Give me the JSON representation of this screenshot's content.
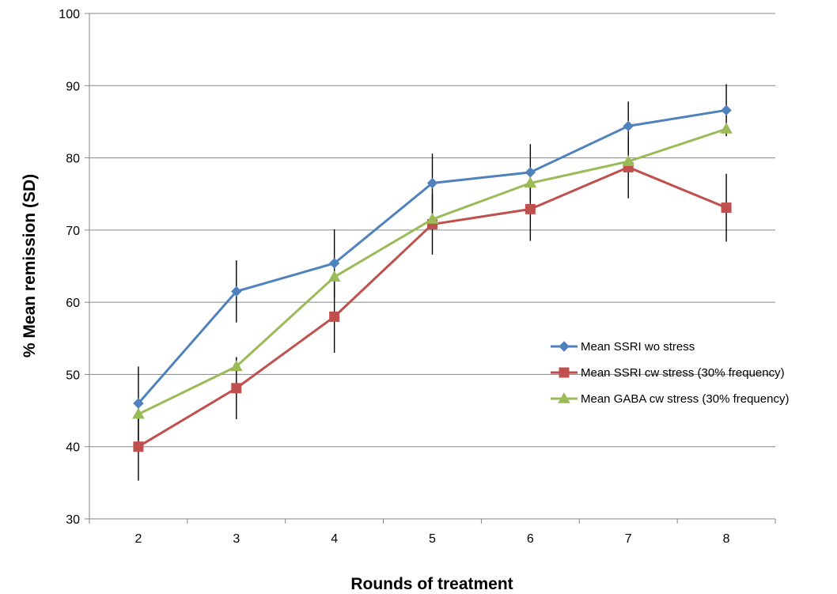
{
  "chart_data": {
    "type": "line",
    "title": "",
    "xlabel": "Rounds of treatment",
    "ylabel": "% Mean remission (SD)",
    "x": [
      2,
      3,
      4,
      5,
      6,
      7,
      8
    ],
    "ylim": [
      30,
      100
    ],
    "yticks": [
      30,
      40,
      50,
      60,
      70,
      80,
      90,
      100
    ],
    "grid": "horizontal",
    "legend_position": "right",
    "series": [
      {
        "name": "Mean SSRI wo stress",
        "color": "#4F81BD",
        "marker": "diamond",
        "values": [
          46.0,
          61.5,
          65.4,
          76.5,
          78.0,
          84.4,
          86.6
        ],
        "sd": [
          5.1,
          4.3,
          4.7,
          4.1,
          3.9,
          3.4,
          3.6
        ]
      },
      {
        "name": "Mean SSRI cw stress (30% frequency)",
        "color": "#C0504D",
        "marker": "square",
        "values": [
          40.0,
          48.1,
          58.0,
          70.8,
          72.9,
          78.7,
          73.1
        ],
        "sd": [
          4.7,
          4.3,
          5.0,
          4.2,
          4.4,
          4.3,
          4.7
        ]
      },
      {
        "name": "Mean GABA cw stress (30% frequency)",
        "color": "#9BBB59",
        "marker": "triangle",
        "values": [
          44.5,
          51.1,
          63.5,
          71.5,
          76.5,
          79.5,
          84.0
        ],
        "sd": [
          null,
          1.3,
          null,
          null,
          null,
          null,
          null
        ]
      }
    ]
  }
}
